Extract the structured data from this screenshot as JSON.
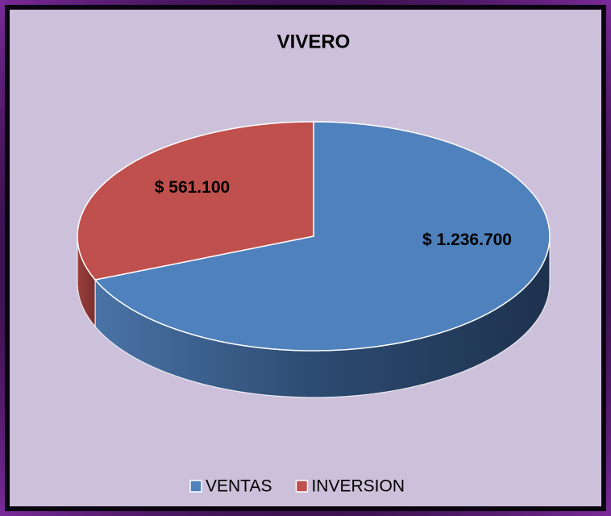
{
  "chart_data": {
    "type": "pie",
    "title": "VIVERO",
    "categories": [
      "VENTAS",
      "INVERSION"
    ],
    "values": [
      1236700,
      561100
    ],
    "value_labels": [
      "$ 1.236.700",
      "$ 561.100"
    ],
    "colors": [
      "#4f81bd",
      "#c0504d"
    ],
    "legend": "bottom"
  }
}
